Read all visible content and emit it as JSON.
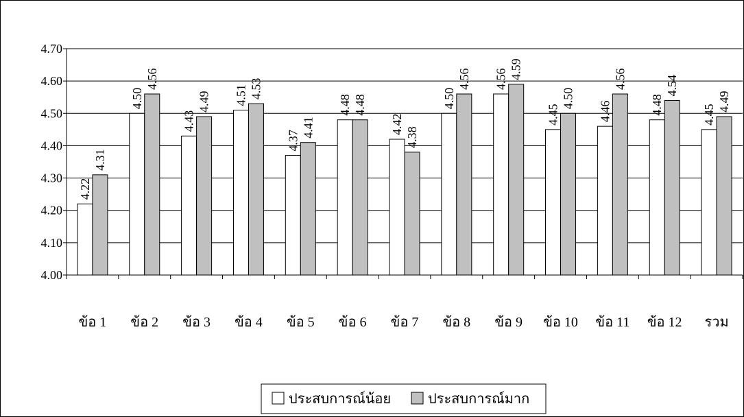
{
  "chart_data": {
    "type": "bar",
    "categories": [
      "ข้อ 1",
      "ข้อ 2",
      "ข้อ 3",
      "ข้อ 4",
      "ข้อ 5",
      "ข้อ 6",
      "ข้อ 7",
      "ข้อ 8",
      "ข้อ 9",
      "ข้อ 10",
      "ข้อ 11",
      "ข้อ 12",
      "รวม"
    ],
    "series": [
      {
        "name": "ประสบการณ์น้อย",
        "values": [
          4.22,
          4.5,
          4.43,
          4.51,
          4.37,
          4.48,
          4.42,
          4.5,
          4.56,
          4.45,
          4.46,
          4.48,
          4.45
        ],
        "labels": [
          "4.22",
          "4.50",
          "4.43",
          "4.51",
          "4.37",
          "4.48",
          "4.42",
          "4.50",
          "4.56",
          "4.45",
          "4.46",
          "4.48",
          "4.45"
        ],
        "color": "#ffffff"
      },
      {
        "name": "ประสบการณ์มาก",
        "values": [
          4.31,
          4.56,
          4.49,
          4.53,
          4.41,
          4.48,
          4.38,
          4.56,
          4.59,
          4.5,
          4.56,
          4.54,
          4.49
        ],
        "labels": [
          "4.31",
          "4.56",
          "4.49",
          "4.53",
          "4.41",
          "4.48",
          "4.38",
          "4.56",
          "4.59",
          "4.50",
          "4.56",
          "4.54",
          "4.49"
        ],
        "color": "#c0c0c0"
      }
    ],
    "y_ticks": [
      "4.00",
      "4.10",
      "4.20",
      "4.30",
      "4.40",
      "4.50",
      "4.60",
      "4.70"
    ],
    "ylim": [
      4.0,
      4.7
    ],
    "grid": "horizontal",
    "legend_position": "bottom-center"
  }
}
